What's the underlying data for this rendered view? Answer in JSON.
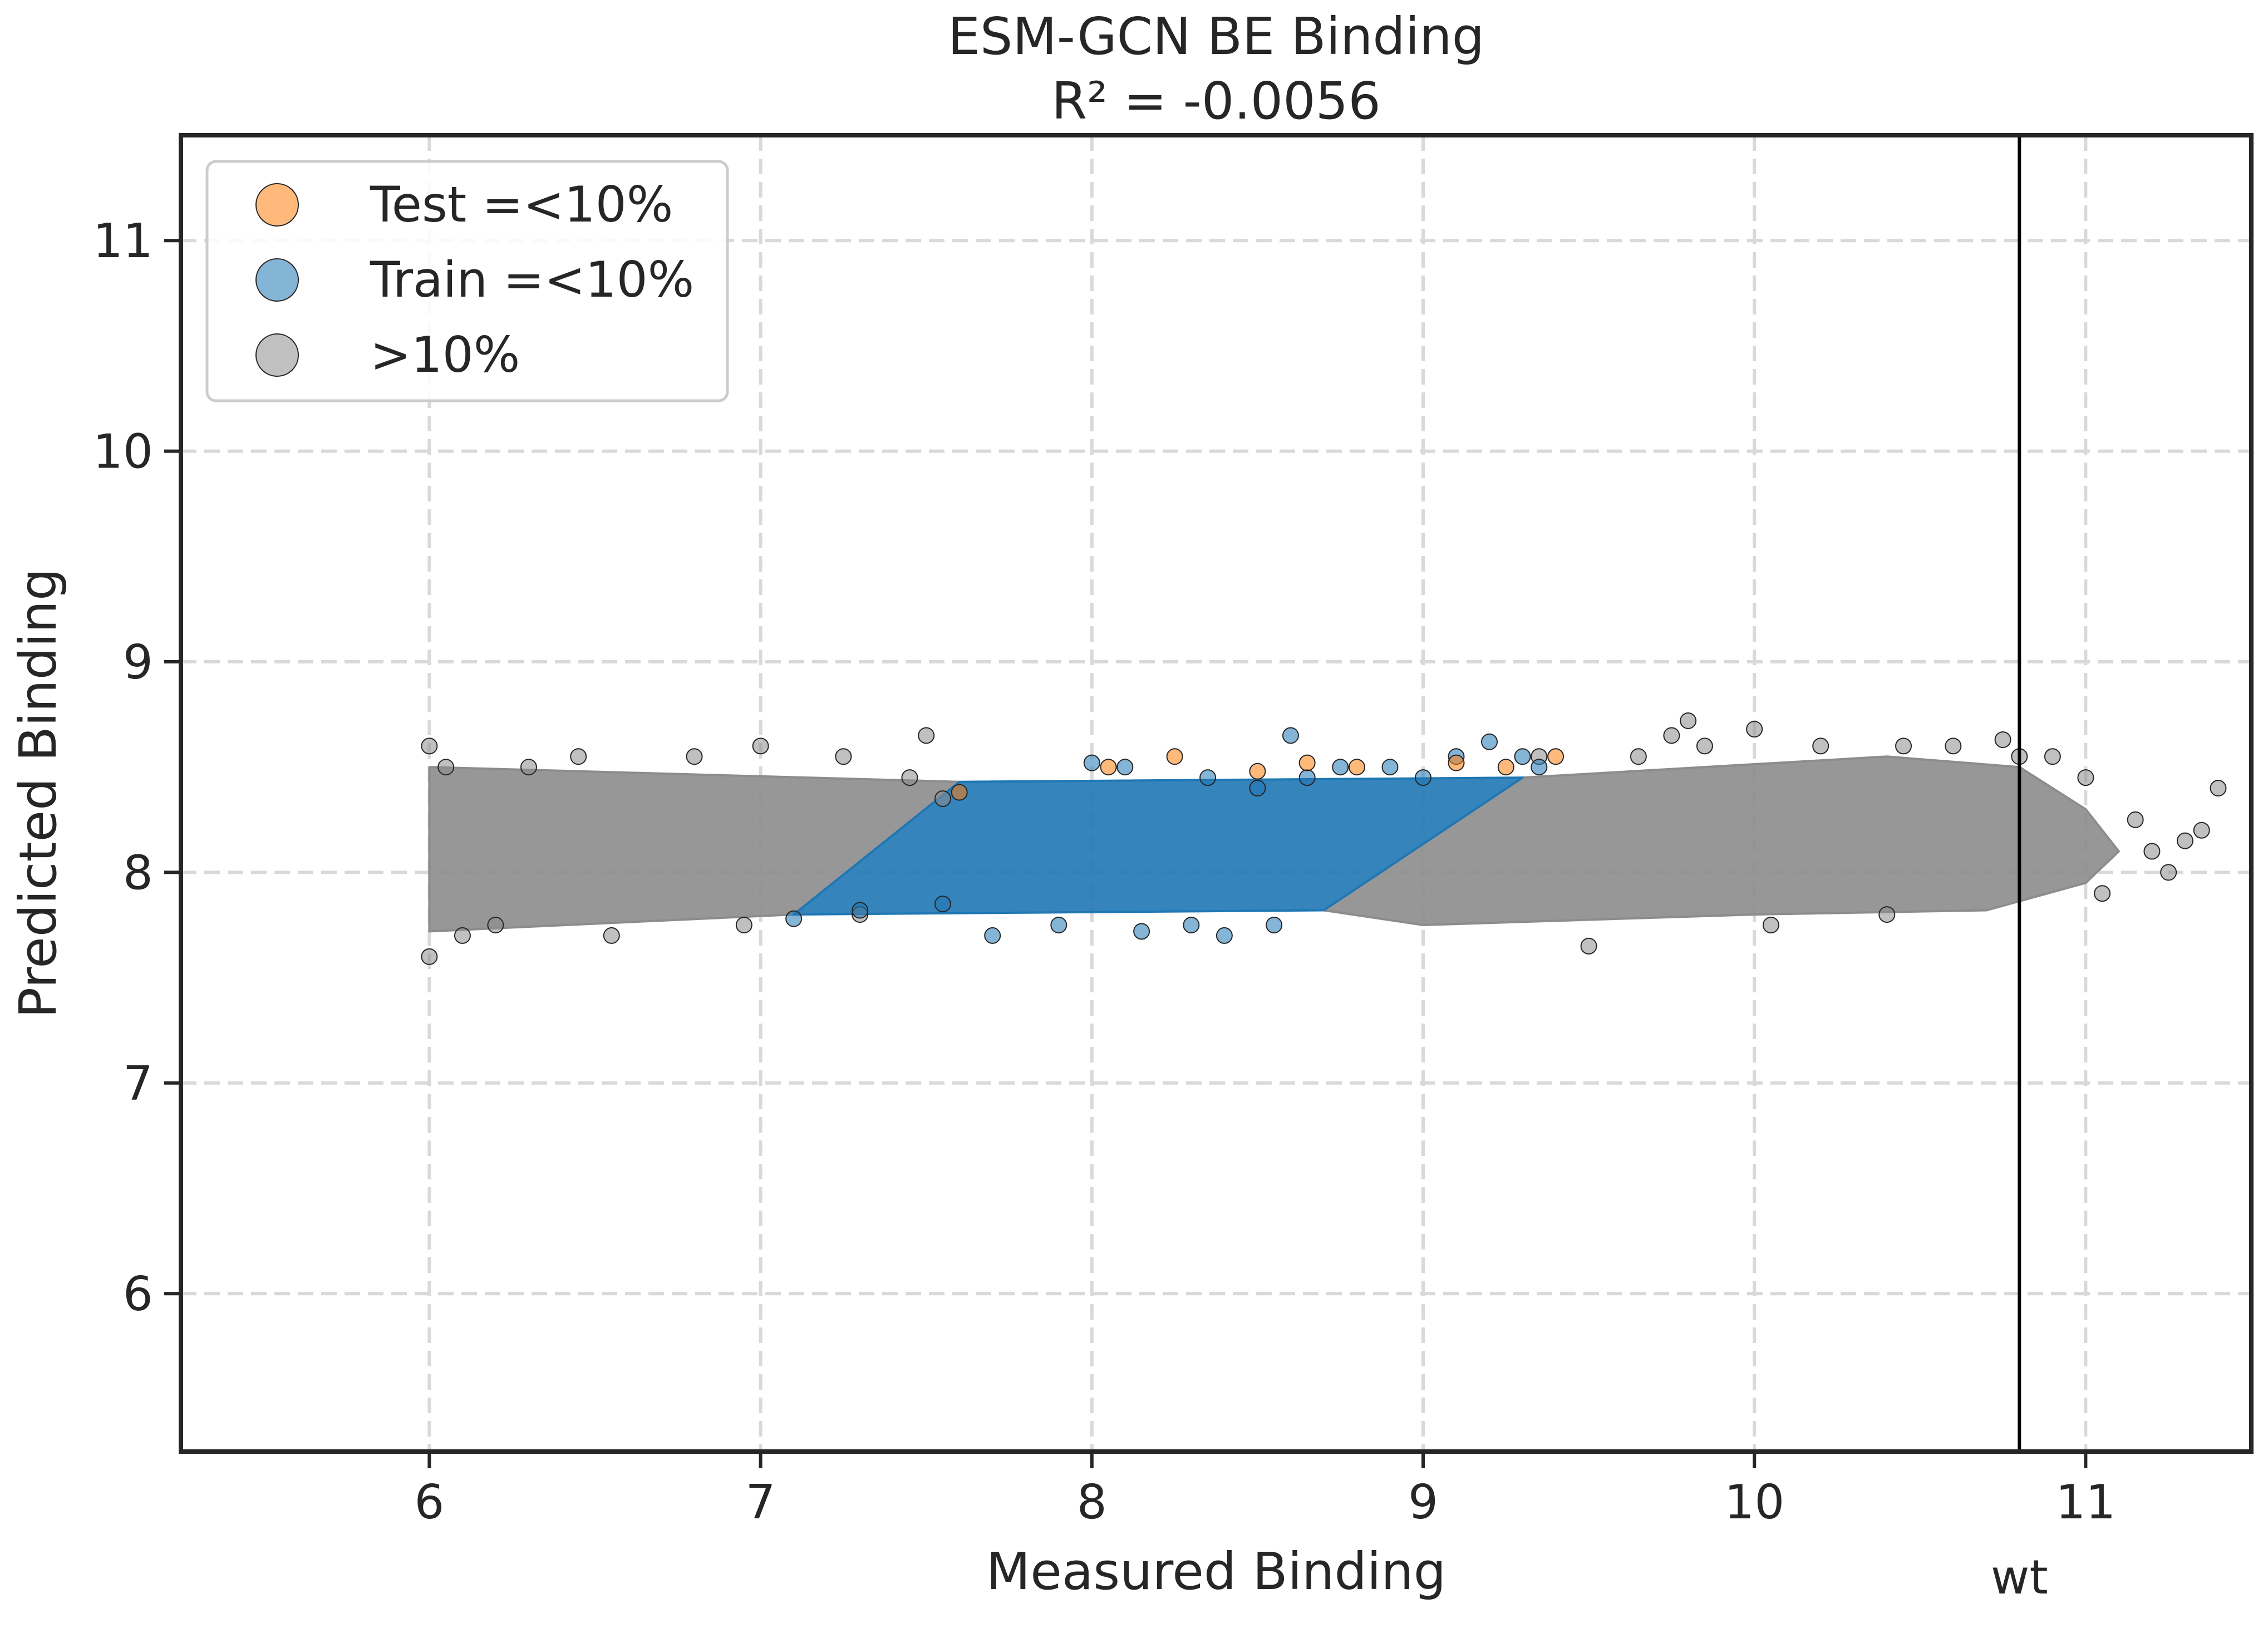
{
  "chart_data": {
    "type": "scatter",
    "title": "ESM-GCN BE Binding",
    "subtitle": "R² = -0.0056",
    "xlabel": "Measured Binding",
    "ylabel": "Predicted Binding",
    "xlim": [
      5.25,
      11.5
    ],
    "ylim": [
      5.25,
      11.5
    ],
    "xticks": [
      6,
      7,
      8,
      9,
      10,
      11
    ],
    "yticks": [
      6,
      7,
      8,
      9,
      10,
      11
    ],
    "grid": true,
    "legend_position": "top-left",
    "reference_line": {
      "x": 10.8,
      "label": "wt",
      "color": "#000000"
    },
    "series": [
      {
        "name": ">10%",
        "color": "#8c8c8c",
        "points": [
          [
            6.0,
            8.6
          ],
          [
            6.0,
            7.6
          ],
          [
            6.05,
            8.5
          ],
          [
            6.1,
            7.7
          ],
          [
            6.3,
            8.5
          ],
          [
            6.2,
            7.75
          ],
          [
            6.45,
            8.55
          ],
          [
            6.55,
            7.7
          ],
          [
            6.8,
            8.55
          ],
          [
            6.95,
            7.75
          ],
          [
            7.0,
            8.6
          ],
          [
            7.25,
            8.55
          ],
          [
            7.45,
            8.45
          ],
          [
            7.5,
            8.65
          ],
          [
            7.55,
            8.35
          ],
          [
            7.3,
            7.8
          ],
          [
            9.35,
            8.55
          ],
          [
            9.5,
            7.65
          ],
          [
            9.65,
            8.55
          ],
          [
            9.75,
            8.65
          ],
          [
            9.8,
            8.72
          ],
          [
            9.85,
            8.6
          ],
          [
            10.0,
            8.68
          ],
          [
            10.05,
            7.75
          ],
          [
            10.2,
            8.6
          ],
          [
            10.4,
            7.8
          ],
          [
            10.45,
            8.6
          ],
          [
            10.6,
            8.6
          ],
          [
            10.75,
            8.63
          ],
          [
            10.8,
            8.55
          ],
          [
            10.9,
            8.55
          ],
          [
            11.0,
            8.45
          ],
          [
            11.05,
            7.9
          ],
          [
            11.15,
            8.25
          ],
          [
            11.2,
            8.1
          ],
          [
            11.25,
            8.0
          ],
          [
            11.3,
            8.15
          ],
          [
            11.35,
            8.2
          ],
          [
            11.4,
            8.4
          ]
        ]
      },
      {
        "name": "Train =<10%",
        "color": "#1f77b4",
        "points": [
          [
            7.1,
            7.78
          ],
          [
            7.3,
            7.82
          ],
          [
            7.55,
            7.85
          ],
          [
            7.7,
            7.7
          ],
          [
            7.9,
            7.75
          ],
          [
            8.0,
            8.52
          ],
          [
            8.1,
            8.5
          ],
          [
            8.15,
            7.72
          ],
          [
            8.3,
            7.75
          ],
          [
            8.35,
            8.45
          ],
          [
            8.4,
            7.7
          ],
          [
            8.5,
            8.4
          ],
          [
            8.55,
            7.75
          ],
          [
            8.6,
            8.65
          ],
          [
            8.65,
            8.45
          ],
          [
            8.75,
            8.5
          ],
          [
            8.9,
            8.5
          ],
          [
            9.0,
            8.45
          ],
          [
            9.1,
            8.55
          ],
          [
            9.2,
            8.62
          ],
          [
            9.3,
            8.55
          ],
          [
            9.35,
            8.5
          ]
        ]
      },
      {
        "name": "Test =<10%",
        "color": "#ff7f0e",
        "points": [
          [
            7.6,
            8.38
          ],
          [
            8.05,
            8.5
          ],
          [
            8.25,
            8.55
          ],
          [
            8.5,
            8.48
          ],
          [
            8.65,
            8.52
          ],
          [
            8.8,
            8.5
          ],
          [
            9.1,
            8.52
          ],
          [
            9.25,
            8.5
          ],
          [
            9.4,
            8.55
          ]
        ]
      }
    ],
    "density_bands": [
      {
        "series": ">10%",
        "polygon": [
          [
            6.0,
            8.5
          ],
          [
            7.6,
            8.43
          ],
          [
            7.1,
            7.8
          ],
          [
            6.0,
            7.72
          ]
        ]
      },
      {
        "series": ">10%",
        "polygon": [
          [
            8.7,
            7.82
          ],
          [
            9.3,
            8.45
          ],
          [
            10.4,
            8.55
          ],
          [
            10.8,
            8.5
          ],
          [
            11.0,
            8.3
          ],
          [
            11.1,
            8.1
          ],
          [
            11.0,
            7.95
          ],
          [
            10.7,
            7.82
          ],
          [
            10.0,
            7.8
          ],
          [
            9.0,
            7.75
          ]
        ]
      },
      {
        "series": "Train =<10%",
        "polygon": [
          [
            7.1,
            7.8
          ],
          [
            7.6,
            8.43
          ],
          [
            9.3,
            8.45
          ],
          [
            8.7,
            7.82
          ]
        ]
      }
    ]
  }
}
